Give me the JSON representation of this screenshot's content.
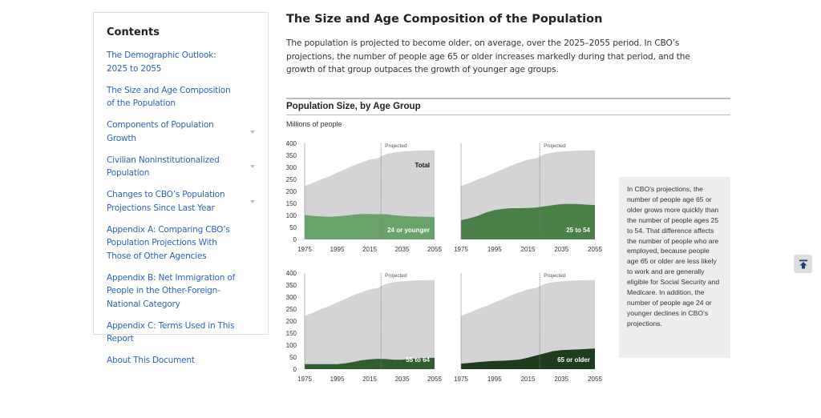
{
  "sidebar": {
    "title": "Contents",
    "items": [
      {
        "label": "The Demographic Outlook: 2025 to 2055",
        "expandable": false
      },
      {
        "label": "The Size and Age Composition of the Population",
        "expandable": false
      },
      {
        "label": "Components of Population Growth",
        "expandable": true
      },
      {
        "label": "Civilian Noninstitutionalized Population",
        "expandable": true
      },
      {
        "label": "Changes to CBO’s Population Projections Since Last Year",
        "expandable": true
      },
      {
        "label": "Appendix A: Comparing CBO’s Population Projections With Those of Other Agencies",
        "expandable": false
      },
      {
        "label": "Appendix B: Net Immigration of People in the Other-Foreign-National Category",
        "expandable": false
      },
      {
        "label": "Appendix C: Terms Used in This Report",
        "expandable": false
      },
      {
        "label": "About This Document",
        "expandable": false
      }
    ]
  },
  "main": {
    "title": "The Size and Age Composition of the Population",
    "intro": "The population is projected to become older, on average, over the 2025–2055 period. In CBO’s projections, the number of people age 65 or older increases markedly during that period, and the growth of that group outpaces the growth of younger age groups.",
    "figure_title": "Population Size, by Age Group",
    "units": "Millions of people",
    "note": "In CBO’s projections, the number of people age 65 or older grows more quickly than the number of people ages 25 to 54. That difference affects the number of people who are employed, because people age 65 or older are less likely to work and are generally eligible for Social Security and Medicare. In addition, the number of people age 24 or younger declines in CBO’s projections."
  },
  "back_to_top_icon": "arrow-up-to-line-icon",
  "chart_data": {
    "type": "area",
    "ylabel": "Millions of people",
    "ylim": [
      0,
      400
    ],
    "yticks": [
      0,
      50,
      100,
      150,
      200,
      250,
      300,
      350,
      400
    ],
    "xticks": [
      1975,
      1995,
      2015,
      2035,
      2055
    ],
    "xlim": [
      1975,
      2055
    ],
    "projected_label": "Projected",
    "projected_start": 2022,
    "x": [
      1975,
      1980,
      1985,
      1990,
      1995,
      2000,
      2005,
      2010,
      2015,
      2020,
      2025,
      2030,
      2035,
      2040,
      2045,
      2050,
      2055
    ],
    "total": {
      "name": "Total",
      "color": "#d4d4d6",
      "values": [
        222,
        235,
        250,
        262,
        278,
        292,
        308,
        320,
        332,
        338,
        355,
        362,
        366,
        368,
        370,
        371,
        371
      ]
    },
    "panels": [
      {
        "name": "24 or younger",
        "color": "#6aa36a",
        "values": [
          102,
          98,
          96,
          94,
          96,
          99,
          103,
          106,
          106,
          105,
          105,
          101,
          98,
          96,
          95,
          94,
          93
        ]
      },
      {
        "name": "25 to 54",
        "color": "#4a7f48",
        "values": [
          80,
          88,
          98,
          112,
          122,
          127,
          130,
          130,
          131,
          133,
          138,
          143,
          147,
          148,
          147,
          145,
          143
        ]
      },
      {
        "name": "55 to 64",
        "color": "#2f5f2c",
        "values": [
          21,
          21,
          21,
          21,
          21,
          24,
          30,
          37,
          41,
          43,
          42,
          39,
          39,
          43,
          46,
          47,
          47
        ]
      },
      {
        "name": "65 or older",
        "color": "#1e3d1d",
        "values": [
          23,
          26,
          29,
          32,
          34,
          35,
          37,
          40,
          48,
          57,
          66,
          75,
          79,
          81,
          82,
          84,
          86
        ]
      }
    ]
  }
}
